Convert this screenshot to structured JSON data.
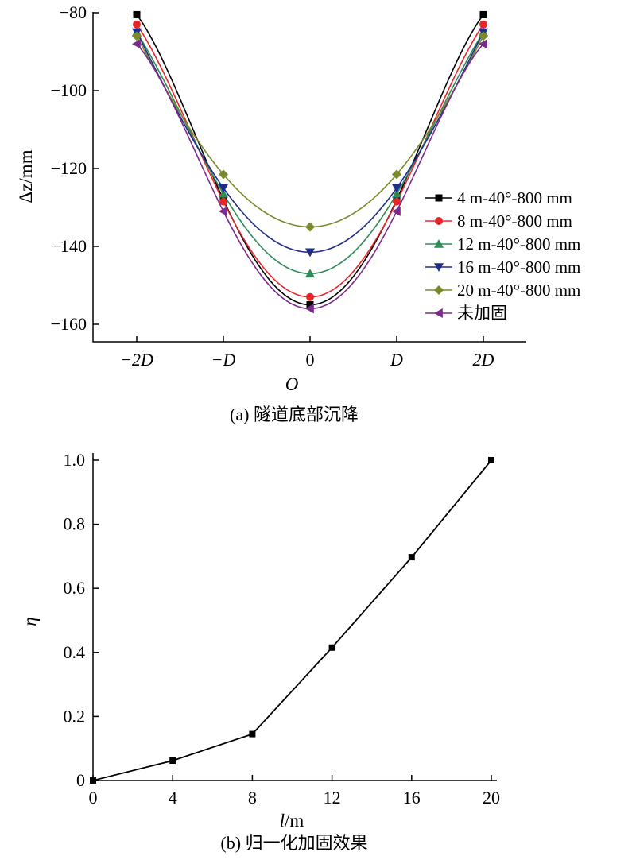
{
  "chart_data": [
    {
      "type": "line",
      "caption": "(a) 隧道底部沉降",
      "xlabel": "O",
      "ylabel": "Δz/mm",
      "x_tick_labels": [
        "−2D",
        "−D",
        "0",
        "D",
        "2D"
      ],
      "x": [
        -2,
        -1,
        0,
        1,
        2
      ],
      "ylim": [
        -165,
        -80
      ],
      "y_ticks": [
        "−80",
        "−100",
        "−120",
        "−140",
        "−160"
      ],
      "legend_position": "right",
      "series": [
        {
          "name": "4 m-40°-800 mm",
          "marker": "square",
          "color": "#000000",
          "values": [
            -80.5,
            -128,
            -155,
            -128,
            -80.5
          ]
        },
        {
          "name": "8 m-40°-800 mm",
          "marker": "circle",
          "color": "#e8262a",
          "values": [
            -83,
            -128.5,
            -153,
            -128.5,
            -83
          ]
        },
        {
          "name": "12 m-40°-800 mm",
          "marker": "triangle-up",
          "color": "#2e8b57",
          "values": [
            -85,
            -126.5,
            -147,
            -126.5,
            -85
          ]
        },
        {
          "name": "16 m-40°-800 mm",
          "marker": "triangle-down",
          "color": "#1f2d8a",
          "values": [
            -85,
            -125,
            -141.5,
            -125,
            -85
          ]
        },
        {
          "name": "20 m-40°-800 mm",
          "marker": "diamond",
          "color": "#7a8a2a",
          "values": [
            -86,
            -121.5,
            -135,
            -121.5,
            -86
          ]
        },
        {
          "name": "未加固",
          "marker": "triangle-left",
          "color": "#7a2a8c",
          "values": [
            -88,
            -131,
            -156,
            -131,
            -88
          ]
        }
      ]
    },
    {
      "type": "line",
      "caption": "(b) 归一化加固效果",
      "xlabel": "l/m",
      "ylabel": "η",
      "x": [
        0,
        4,
        8,
        12,
        16,
        20
      ],
      "xlim": [
        0,
        20
      ],
      "ylim": [
        0,
        1.0
      ],
      "x_ticks": [
        "0",
        "4",
        "8",
        "12",
        "16",
        "20"
      ],
      "y_ticks": [
        "0",
        "0.2",
        "0.4",
        "0.6",
        "0.8",
        "1.0"
      ],
      "series": [
        {
          "marker": "square",
          "color": "#000000",
          "values": [
            0,
            0.062,
            0.145,
            0.415,
            0.697,
            1.0
          ]
        }
      ]
    }
  ]
}
